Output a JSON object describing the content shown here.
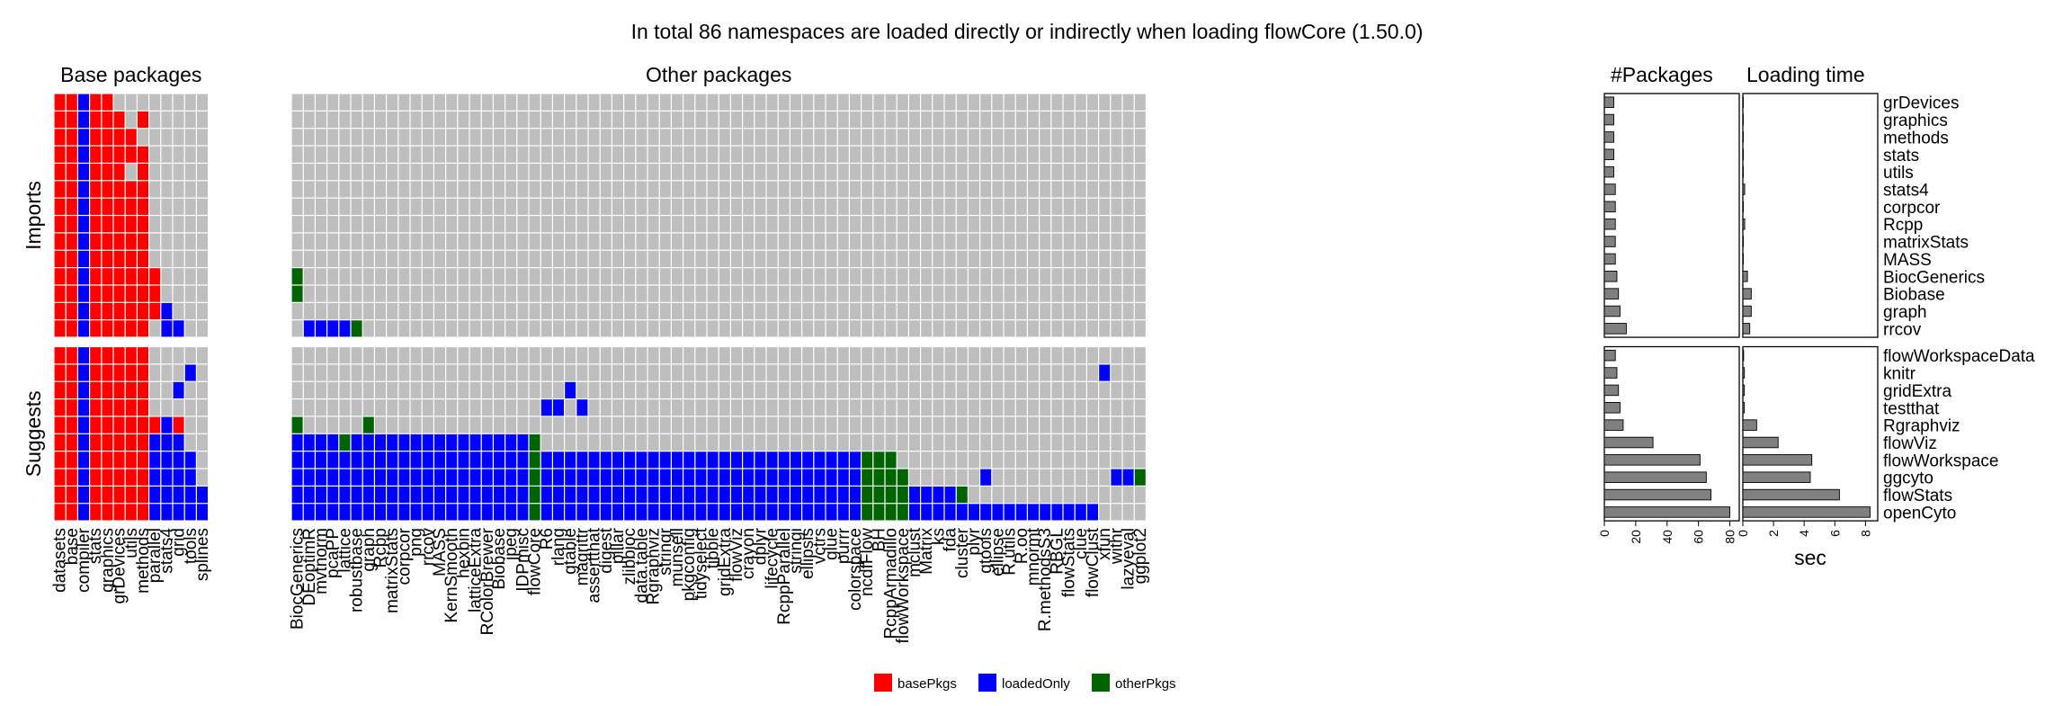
{
  "chart_data": {
    "type": "heatmap",
    "title": "In total 86 namespaces are loaded directly or indirectly when loading flowCore (1.50.0)",
    "panels": {
      "base_title": "Base packages",
      "other_title": "Other packages",
      "npkg_title": "#Packages",
      "time_title": "Loading time"
    },
    "row_groups": [
      "Imports",
      "Suggests"
    ],
    "rows": {
      "imports": [
        "grDevices",
        "graphics",
        "methods",
        "stats",
        "utils",
        "stats4",
        "corpcor",
        "Rcpp",
        "matrixStats",
        "MASS",
        "BiocGenerics",
        "Biobase",
        "graph",
        "rrcov"
      ],
      "suggests": [
        "flowWorkspaceData",
        "knitr",
        "gridExtra",
        "testthat",
        "Rgraphviz",
        "flowViz",
        "flowWorkspace",
        "ggcyto",
        "flowStats",
        "openCyto"
      ]
    },
    "base_columns": [
      "datasets",
      "base",
      "compiler",
      "stats",
      "graphics",
      "grDevices",
      "utils",
      "methods",
      "parallel",
      "stats4",
      "grid",
      "tools",
      "splines"
    ],
    "other_columns": [
      "BiocGenerics",
      "DEoptimR",
      "mvtnorm",
      "pcaPP",
      "lattice",
      "robustbase",
      "graph",
      "Rcpp",
      "matrixStats",
      "corpcor",
      "png",
      "rrcov",
      "MASS",
      "KernSmooth",
      "hexbin",
      "latticeExtra",
      "RColorBrewer",
      "Biobase",
      "jpeg",
      "IDPmisc",
      "flowCore",
      "R6",
      "rlang",
      "gtable",
      "magrittr",
      "assertthat",
      "digest",
      "pillar",
      "zlibbioc",
      "data.table",
      "Rgraphviz",
      "stringr",
      "munsell",
      "pkgconfig",
      "tidyselect",
      "tibble",
      "gridExtra",
      "flowViz",
      "crayon",
      "dplyr",
      "lifecycle",
      "RcppParallel",
      "stringi",
      "ellipsis",
      "vctrs",
      "glue",
      "purrr",
      "colorspace",
      "ncdfFlow",
      "BH",
      "RcppArmadillo",
      "flowWorkspace",
      "mclust",
      "Matrix",
      "ks",
      "fda",
      "cluster",
      "plyr",
      "gtools",
      "ellipse",
      "R.utils",
      "R.oo",
      "mnormt",
      "R.methodsS3",
      "RBGL",
      "flowStats",
      "clue",
      "flowClust",
      "xfun",
      "withr",
      "lazyeval",
      "ggplot2"
    ],
    "cell_codes": {
      "0": "not loaded",
      "1": "basePkgs",
      "2": "loadedOnly",
      "3": "otherPkgs"
    },
    "base_matrix": {
      "grDevices": [
        1,
        1,
        2,
        1,
        1,
        0,
        0,
        0,
        0,
        0,
        0,
        0,
        0
      ],
      "graphics": [
        1,
        1,
        2,
        1,
        1,
        1,
        0,
        1,
        0,
        0,
        0,
        0,
        0
      ],
      "methods": [
        1,
        1,
        2,
        1,
        1,
        1,
        1,
        0,
        0,
        0,
        0,
        0,
        0
      ],
      "stats": [
        1,
        1,
        2,
        1,
        1,
        1,
        1,
        1,
        0,
        0,
        0,
        0,
        0
      ],
      "utils": [
        1,
        1,
        2,
        1,
        1,
        1,
        0,
        1,
        0,
        0,
        0,
        0,
        0
      ],
      "stats4": [
        1,
        1,
        2,
        1,
        1,
        1,
        1,
        1,
        0,
        0,
        0,
        0,
        0
      ],
      "corpcor": [
        1,
        1,
        2,
        1,
        1,
        1,
        1,
        1,
        0,
        0,
        0,
        0,
        0
      ],
      "Rcpp": [
        1,
        1,
        2,
        1,
        1,
        1,
        1,
        1,
        0,
        0,
        0,
        0,
        0
      ],
      "matrixStats": [
        1,
        1,
        2,
        1,
        1,
        1,
        1,
        1,
        0,
        0,
        0,
        0,
        0
      ],
      "MASS": [
        1,
        1,
        2,
        1,
        1,
        1,
        1,
        1,
        0,
        0,
        0,
        0,
        0
      ],
      "BiocGenerics": [
        1,
        1,
        2,
        1,
        1,
        1,
        1,
        1,
        1,
        0,
        0,
        0,
        0
      ],
      "Biobase": [
        1,
        1,
        2,
        1,
        1,
        1,
        1,
        1,
        1,
        0,
        0,
        0,
        0
      ],
      "graph": [
        1,
        1,
        2,
        1,
        1,
        1,
        1,
        1,
        1,
        2,
        0,
        0,
        0
      ],
      "rrcov": [
        1,
        1,
        2,
        1,
        1,
        1,
        1,
        1,
        0,
        2,
        2,
        0,
        0
      ],
      "flowWorkspaceData": [
        1,
        1,
        2,
        1,
        1,
        1,
        1,
        1,
        0,
        0,
        0,
        0,
        0
      ],
      "knitr": [
        1,
        1,
        2,
        1,
        1,
        1,
        1,
        1,
        0,
        0,
        0,
        2,
        0
      ],
      "gridExtra": [
        1,
        1,
        2,
        1,
        1,
        1,
        1,
        1,
        0,
        0,
        2,
        0,
        0
      ],
      "testthat": [
        1,
        1,
        2,
        1,
        1,
        1,
        1,
        1,
        0,
        0,
        0,
        0,
        0
      ],
      "Rgraphviz": [
        1,
        1,
        2,
        1,
        1,
        1,
        1,
        1,
        1,
        2,
        1,
        0,
        0
      ],
      "flowViz": [
        1,
        1,
        2,
        1,
        1,
        1,
        1,
        1,
        2,
        2,
        2,
        0,
        0
      ],
      "flowWorkspace": [
        1,
        1,
        2,
        1,
        1,
        1,
        1,
        1,
        2,
        2,
        2,
        2,
        0
      ],
      "ggcyto": [
        1,
        1,
        2,
        1,
        1,
        1,
        1,
        1,
        2,
        2,
        2,
        2,
        0
      ],
      "flowStats": [
        1,
        1,
        2,
        1,
        1,
        1,
        1,
        1,
        2,
        2,
        2,
        2,
        2
      ],
      "openCyto": [
        1,
        1,
        2,
        1,
        1,
        1,
        1,
        1,
        2,
        2,
        2,
        2,
        2
      ]
    },
    "other_filled": {
      "BiocGenerics": [
        [
          0,
          1,
          3
        ]
      ],
      "Biobase": [
        [
          0,
          1,
          3
        ]
      ],
      "rrcov": [
        [
          1,
          5,
          2
        ],
        [
          5,
          6,
          3
        ]
      ],
      "knitr": [
        [
          68,
          69,
          2
        ]
      ],
      "gridExtra": [
        [
          23,
          24,
          2
        ]
      ],
      "testthat": [
        [
          21,
          23,
          2
        ],
        [
          24,
          25,
          2
        ]
      ],
      "Rgraphviz": [
        [
          0,
          1,
          3
        ],
        [
          6,
          7,
          3
        ]
      ],
      "flowViz": [
        [
          0,
          4,
          2
        ],
        [
          4,
          5,
          3
        ],
        [
          5,
          20,
          2
        ],
        [
          20,
          21,
          3
        ]
      ],
      "flowWorkspace": [
        [
          0,
          20,
          2
        ],
        [
          20,
          21,
          3
        ],
        [
          21,
          48,
          2
        ],
        [
          48,
          51,
          3
        ]
      ],
      "ggcyto": [
        [
          0,
          20,
          2
        ],
        [
          20,
          21,
          3
        ],
        [
          21,
          48,
          2
        ],
        [
          48,
          52,
          3
        ],
        [
          58,
          59,
          2
        ],
        [
          69,
          71,
          2
        ],
        [
          71,
          72,
          3
        ]
      ],
      "flowStats": [
        [
          0,
          20,
          2
        ],
        [
          20,
          21,
          3
        ],
        [
          21,
          48,
          2
        ],
        [
          48,
          52,
          3
        ],
        [
          52,
          56,
          2
        ],
        [
          56,
          57,
          3
        ]
      ],
      "openCyto": [
        [
          0,
          20,
          2
        ],
        [
          20,
          21,
          3
        ],
        [
          21,
          48,
          2
        ],
        [
          48,
          52,
          3
        ],
        [
          52,
          68,
          2
        ]
      ]
    },
    "n_packages": {
      "values": [
        6,
        6,
        6,
        6,
        6,
        7,
        7,
        7,
        7,
        7,
        8,
        9,
        10,
        14,
        7,
        8,
        9,
        10,
        12,
        31,
        61,
        65,
        68,
        80
      ],
      "xlim": [
        0,
        86
      ],
      "ticks": [
        "0",
        "20",
        "40",
        "60",
        "80"
      ]
    },
    "loading_time": {
      "values": [
        0.02,
        0.02,
        0.02,
        0.02,
        0.02,
        0.12,
        0.03,
        0.12,
        0.03,
        0.03,
        0.3,
        0.55,
        0.55,
        0.45,
        0.05,
        0.1,
        0.1,
        0.1,
        0.9,
        2.3,
        4.5,
        4.4,
        6.3,
        8.3
      ],
      "xlim": [
        0,
        8.8
      ],
      "ticks": [
        "0",
        "2",
        "4",
        "6",
        "8"
      ],
      "xlabel": "sec"
    },
    "legend": [
      {
        "name": "basePkgs",
        "color": "#ff0000"
      },
      {
        "name": "loadedOnly",
        "color": "#0000ff"
      },
      {
        "name": "otherPkgs",
        "color": "#006400"
      }
    ],
    "colors": {
      "empty": "#bebebe",
      "grid": "#ffffff",
      "bar": "#808080"
    }
  }
}
